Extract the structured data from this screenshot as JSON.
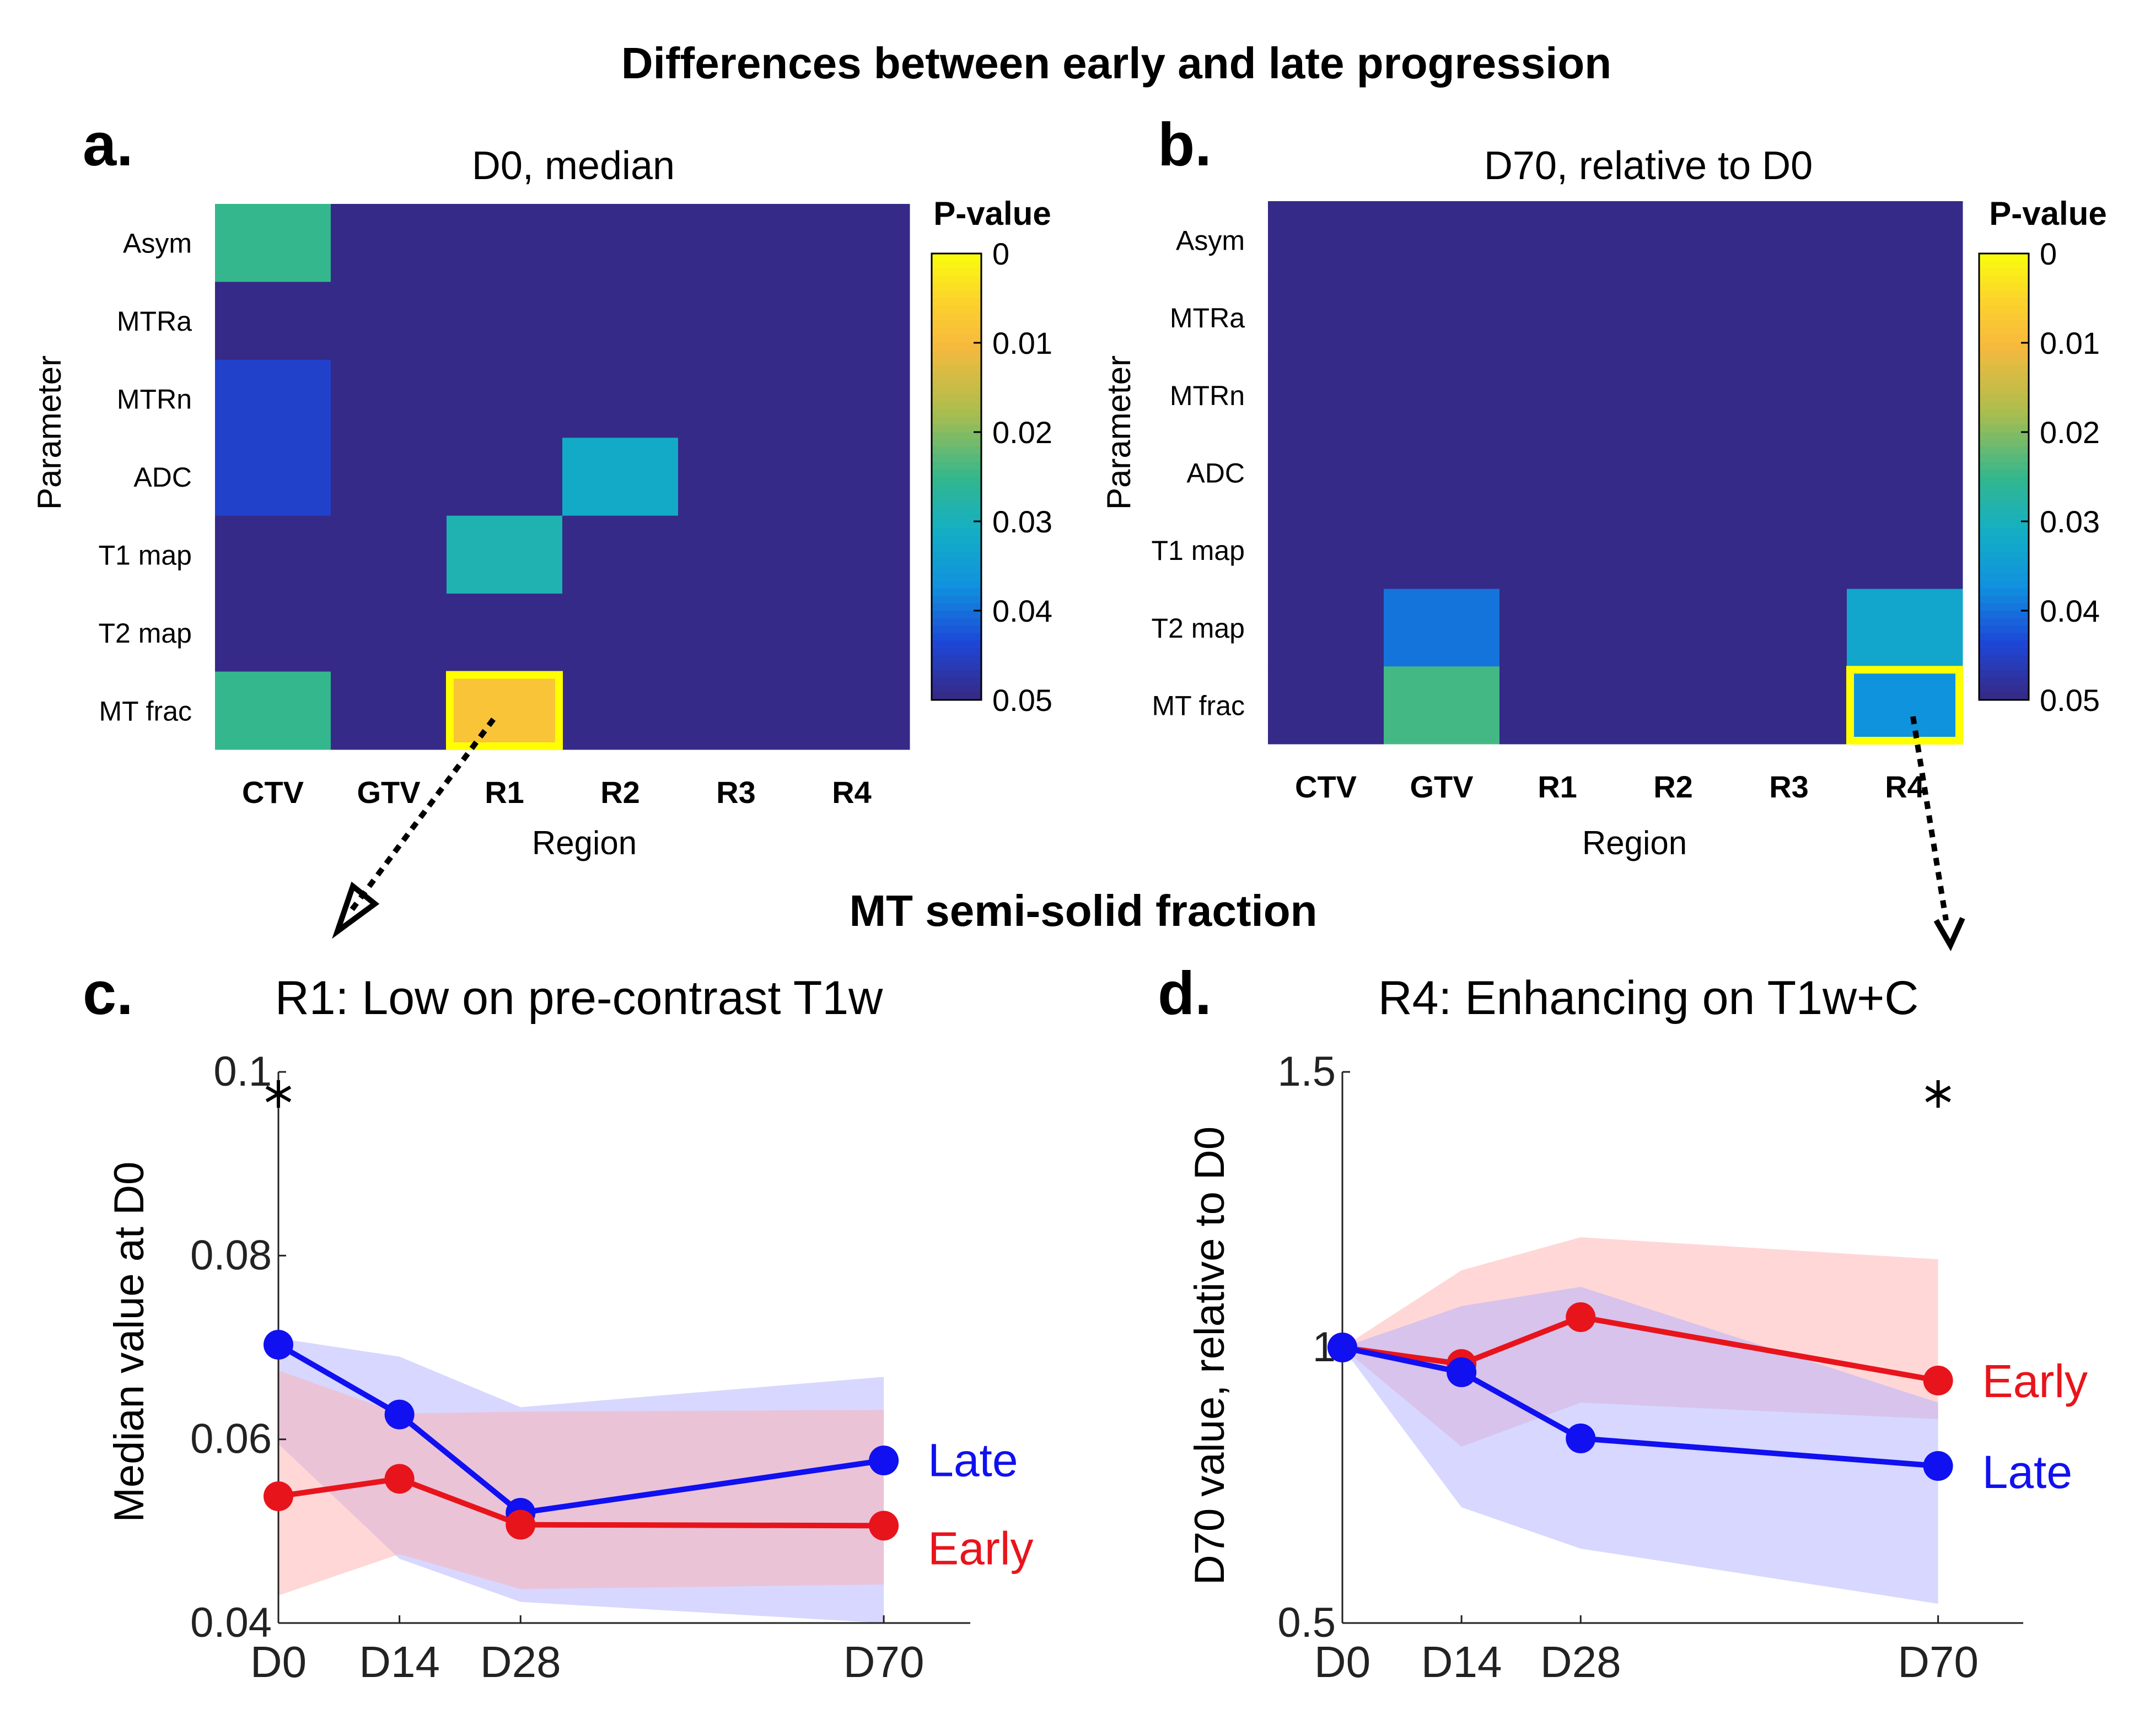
{
  "figure_title": "Differences between early and late progression",
  "subtitle": "MT semi-solid fraction",
  "colors": {
    "early": "#e8141c",
    "late": "#1010f0",
    "early_band": "#ffb0b0",
    "late_band": "#b0b0ff",
    "highlight": "#ffff00",
    "text": "#000000"
  },
  "chart_data": [
    {
      "type": "heatmap",
      "panel_label": "a.",
      "title": "D0, median",
      "xlabel": "Region",
      "ylabel": "Parameter",
      "colorbar_title": "P-value",
      "colorbar_ticks": [
        "0",
        "0.01",
        "0.02",
        "0.03",
        "0.04",
        "0.05"
      ],
      "clim": [
        0,
        0.05
      ],
      "x_categories": [
        "CTV",
        "GTV",
        "R1",
        "R2",
        "R3",
        "R4"
      ],
      "y_categories": [
        "Asym",
        "MTRa",
        "MTRn",
        "ADC",
        "T1 map",
        "T2 map",
        "MT frac"
      ],
      "values": [
        [
          0.025,
          0.05,
          0.05,
          0.05,
          0.05,
          0.05
        ],
        [
          0.05,
          0.05,
          0.05,
          0.05,
          0.05,
          0.05
        ],
        [
          0.045,
          0.05,
          0.05,
          0.05,
          0.05,
          0.05
        ],
        [
          0.045,
          0.05,
          0.05,
          0.032,
          0.05,
          0.05
        ],
        [
          0.05,
          0.05,
          0.029,
          0.05,
          0.05,
          0.05
        ],
        [
          0.05,
          0.05,
          0.05,
          0.05,
          0.05,
          0.05
        ],
        [
          0.025,
          0.05,
          0.008,
          0.05,
          0.05,
          0.05
        ]
      ],
      "highlight": {
        "row": 6,
        "col": 2
      }
    },
    {
      "type": "heatmap",
      "panel_label": "b.",
      "title": "D70, relative to D0",
      "xlabel": "Region",
      "ylabel": "Parameter",
      "colorbar_title": "P-value",
      "colorbar_ticks": [
        "0",
        "0.01",
        "0.02",
        "0.03",
        "0.04",
        "0.05"
      ],
      "clim": [
        0,
        0.05
      ],
      "x_categories": [
        "CTV",
        "GTV",
        "R1",
        "R2",
        "R3",
        "R4"
      ],
      "y_categories": [
        "Asym",
        "MTRa",
        "MTRn",
        "ADC",
        "T1 map",
        "T2 map",
        "MT frac"
      ],
      "values": [
        [
          0.05,
          0.05,
          0.05,
          0.05,
          0.05,
          0.05
        ],
        [
          0.05,
          0.05,
          0.05,
          0.05,
          0.05,
          0.05
        ],
        [
          0.05,
          0.05,
          0.05,
          0.05,
          0.05,
          0.05
        ],
        [
          0.05,
          0.05,
          0.05,
          0.05,
          0.05,
          0.05
        ],
        [
          0.05,
          0.05,
          0.05,
          0.05,
          0.05,
          0.05
        ],
        [
          0.05,
          0.04,
          0.05,
          0.05,
          0.05,
          0.033
        ],
        [
          0.05,
          0.024,
          0.05,
          0.05,
          0.05,
          0.037
        ]
      ],
      "highlight": {
        "row": 6,
        "col": 5
      }
    },
    {
      "type": "line",
      "panel_label": "c.",
      "title": "R1: Low on pre-contrast T1w",
      "xlabel": "",
      "ylabel": "Median value at D0",
      "x_tick_labels": [
        "D0",
        "D14",
        "D28",
        "D70"
      ],
      "x": [
        0,
        14,
        28,
        70
      ],
      "xlim": [
        0,
        80
      ],
      "ylim": [
        0.04,
        0.1
      ],
      "y_ticks": [
        0.04,
        0.06,
        0.08,
        0.1
      ],
      "y_tick_labels": [
        "0.04",
        "0.06",
        "0.08",
        "0.1"
      ],
      "asterisk_x": 0,
      "series": [
        {
          "name": "Late",
          "values": [
            0.0703,
            0.0627,
            0.052,
            0.0577
          ],
          "band_low": [
            0.0595,
            0.047,
            0.0423,
            0.04
          ],
          "band_high": [
            0.071,
            0.069,
            0.0635,
            0.0668
          ],
          "label_y": 0.0578
        },
        {
          "name": "Early",
          "values": [
            0.0538,
            0.0557,
            0.0507,
            0.0506
          ],
          "band_low": [
            0.043,
            0.0475,
            0.0437,
            0.0442
          ],
          "band_high": [
            0.0675,
            0.0628,
            0.063,
            0.0632
          ],
          "label_y": 0.0482
        }
      ]
    },
    {
      "type": "line",
      "panel_label": "d.",
      "title": "R4: Enhancing on T1w+C",
      "xlabel": "",
      "ylabel": "D70 value, relative to D0",
      "x_tick_labels": [
        "D0",
        "D14",
        "D28",
        "D70"
      ],
      "x": [
        0,
        14,
        28,
        70
      ],
      "xlim": [
        0,
        80
      ],
      "ylim": [
        0.5,
        1.5
      ],
      "y_ticks": [
        0.5,
        1,
        1.5
      ],
      "y_tick_labels": [
        "0.5",
        "1",
        "1.5"
      ],
      "asterisk_x": 70,
      "series": [
        {
          "name": "Early",
          "values": [
            1.0,
            0.97,
            1.055,
            0.94
          ],
          "band_low": [
            1.0,
            0.82,
            0.9,
            0.87
          ],
          "band_high": [
            1.0,
            1.14,
            1.2,
            1.16
          ],
          "label_y": 0.94
        },
        {
          "name": "Late",
          "values": [
            1.0,
            0.955,
            0.835,
            0.785
          ],
          "band_low": [
            1.0,
            0.71,
            0.635,
            0.535
          ],
          "band_high": [
            1.0,
            1.075,
            1.11,
            0.9
          ],
          "label_y": 0.775
        }
      ]
    }
  ]
}
